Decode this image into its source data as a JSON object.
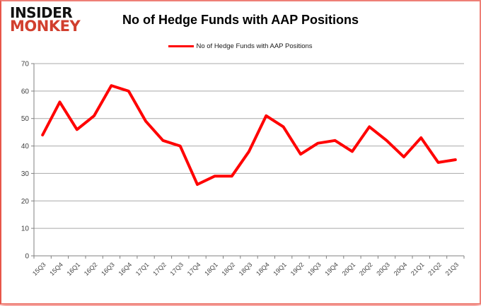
{
  "logo": {
    "line1": "INSIDER",
    "line2": "MONKEY"
  },
  "header": {
    "title": "No of Hedge Funds with AAP Positions"
  },
  "legend": {
    "label": "No of Hedge Funds with AAP Positions"
  },
  "colors": {
    "series_line": "#ff0000",
    "grid": "#a9a9a9",
    "axis": "#808080",
    "tick_text": "#3f3f3f",
    "logo_black": "#111111",
    "logo_red": "#d13f2e"
  },
  "chart_data": {
    "type": "line",
    "title": "No of Hedge Funds with AAP Positions",
    "xlabel": "",
    "ylabel": "",
    "grid": true,
    "legend_position": "top",
    "ylim": [
      0,
      70
    ],
    "yticks": [
      0,
      10,
      20,
      30,
      40,
      50,
      60,
      70
    ],
    "categories": [
      "15Q3",
      "15Q4",
      "16Q1",
      "16Q2",
      "16Q3",
      "16Q4",
      "17Q1",
      "17Q2",
      "17Q3",
      "17Q4",
      "18Q1",
      "18Q2",
      "18Q3",
      "18Q4",
      "19Q1",
      "19Q2",
      "19Q3",
      "19Q4",
      "20Q1",
      "20Q2",
      "20Q3",
      "20Q4",
      "21Q1",
      "21Q2",
      "21Q3"
    ],
    "series": [
      {
        "name": "No of Hedge Funds with AAP Positions",
        "color": "#ff0000",
        "values": [
          44,
          56,
          46,
          51,
          62,
          60,
          49,
          42,
          40,
          26,
          29,
          29,
          38,
          51,
          47,
          37,
          41,
          42,
          38,
          47,
          42,
          36,
          43,
          34,
          35
        ]
      }
    ]
  }
}
